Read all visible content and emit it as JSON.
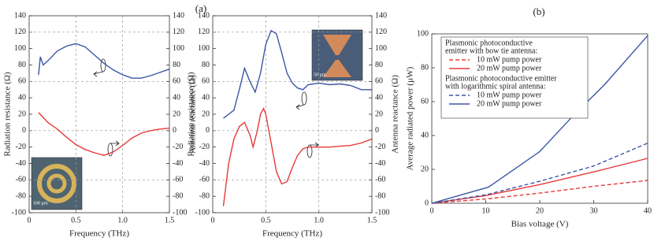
{
  "panel_labels": [
    "(a)",
    "(b)"
  ],
  "chart_data": [
    {
      "type": "line",
      "xlabel": "Frequency (THz)",
      "ylabel": "Radiation resistance (Ω)",
      "y2label": "Antenna reactance (Ω)",
      "xlim": [
        0,
        1.5
      ],
      "xticks": [
        0,
        0.5,
        {
          "value": 1,
          "label": "1.0"
        },
        1.5
      ],
      "ylim": [
        -100,
        140
      ],
      "yticks": [
        -100,
        -80,
        -60,
        -40,
        -20,
        0,
        20,
        40,
        60,
        80,
        100,
        120,
        140
      ],
      "y2lim": [
        -100,
        140
      ],
      "y2ticks": [
        -100,
        -80,
        -60,
        -40,
        -20,
        0,
        20,
        40,
        60,
        80,
        100,
        120,
        140
      ],
      "grid": true,
      "inset_label": "100 µm",
      "series": [
        {
          "color": "#3b56a6",
          "x": [
            0.1,
            0.12,
            0.15,
            0.2,
            0.3,
            0.4,
            0.5,
            0.6,
            0.7,
            0.8,
            0.9,
            1.0,
            1.1,
            1.2,
            1.3,
            1.4,
            1.5
          ],
          "values": [
            68,
            90,
            80,
            85,
            97,
            103,
            106,
            102,
            92,
            82,
            74,
            68,
            64,
            64,
            67,
            71,
            75
          ]
        },
        {
          "color": "#e63a3a",
          "axis": "y2",
          "x": [
            0.1,
            0.2,
            0.3,
            0.4,
            0.5,
            0.6,
            0.7,
            0.8,
            0.9,
            1.0,
            1.1,
            1.2,
            1.3,
            1.4,
            1.5
          ],
          "values": [
            22,
            10,
            2,
            -8,
            -17,
            -23,
            -27,
            -30,
            -26,
            -18,
            -9,
            -3,
            0,
            2,
            3
          ]
        }
      ]
    },
    {
      "type": "line",
      "xlabel": "Frequency (THz)",
      "ylabel": "Radiation resistance (Ω)",
      "y2label": "Antenna reactance (Ω)",
      "xlim": [
        0,
        1.5
      ],
      "xticks": [
        0,
        0.5,
        {
          "value": 1,
          "label": "1.0"
        },
        1.5
      ],
      "ylim": [
        -100,
        140
      ],
      "yticks": [
        -100,
        -80,
        -60,
        -40,
        -20,
        0,
        20,
        40,
        60,
        80,
        100,
        120,
        140
      ],
      "y2lim": [
        -100,
        140
      ],
      "y2ticks": [
        -100,
        -80,
        -60,
        -40,
        -20,
        0,
        20,
        40,
        60,
        80,
        100,
        120,
        140
      ],
      "grid": true,
      "inset_label": "50 µm",
      "series": [
        {
          "color": "#3b56a6",
          "x": [
            0.1,
            0.2,
            0.25,
            0.3,
            0.35,
            0.4,
            0.45,
            0.5,
            0.55,
            0.6,
            0.65,
            0.7,
            0.75,
            0.8,
            0.85,
            0.9,
            1.0,
            1.1,
            1.2,
            1.3,
            1.4,
            1.5
          ],
          "values": [
            15,
            25,
            50,
            76,
            60,
            47,
            70,
            105,
            122,
            118,
            95,
            70,
            58,
            52,
            50,
            56,
            58,
            56,
            57,
            55,
            50,
            50
          ]
        },
        {
          "color": "#e63a3a",
          "axis": "y2",
          "x": [
            0.1,
            0.15,
            0.2,
            0.25,
            0.3,
            0.35,
            0.38,
            0.42,
            0.45,
            0.48,
            0.5,
            0.55,
            0.6,
            0.65,
            0.7,
            0.75,
            0.8,
            0.85,
            0.9,
            1.0,
            1.1,
            1.2,
            1.3,
            1.4,
            1.5
          ],
          "values": [
            -92,
            -40,
            -10,
            5,
            10,
            -5,
            -20,
            0,
            20,
            27,
            20,
            -15,
            -50,
            -65,
            -62,
            -45,
            -30,
            -22,
            -20,
            -20,
            -20,
            -19,
            -18,
            -15,
            -10
          ]
        }
      ]
    },
    {
      "type": "line",
      "xlabel": "Bias voltage (V)",
      "ylabel": "Average radiated power (µW)",
      "xlim": [
        0,
        40
      ],
      "xticks": [
        0,
        10,
        20,
        30,
        40
      ],
      "ylim": [
        0,
        100
      ],
      "yticks": [
        0,
        20,
        40,
        60,
        80,
        100
      ],
      "grid": false,
      "legend_headings": [
        [
          "Plasmonic photoconductive",
          "emitter with bow tie antenna:"
        ],
        [
          "Plasmonic photoconductive emitter",
          "with logarithmic spiral antenna:"
        ]
      ],
      "series": [
        {
          "name": "10 mW pump power",
          "color": "#e63a3a",
          "style": "dashed",
          "x": [
            0,
            10,
            20,
            30,
            40
          ],
          "values": [
            0,
            2.5,
            6,
            10,
            13.5
          ]
        },
        {
          "name": "20 mW pump power",
          "color": "#e63a3a",
          "style": "solid",
          "x": [
            0,
            10,
            20,
            30,
            40
          ],
          "values": [
            0,
            4.5,
            11,
            18.5,
            26.5
          ]
        },
        {
          "name": "10 mW pump power",
          "color": "#3b56a6",
          "style": "dashed",
          "x": [
            0,
            10,
            20,
            30,
            40
          ],
          "values": [
            0,
            5,
            13,
            22,
            35.5
          ]
        },
        {
          "name": "20 mW pump power",
          "color": "#3b56a6",
          "style": "solid",
          "x": [
            0,
            10.5,
            20,
            26,
            32,
            40
          ],
          "values": [
            0,
            9.5,
            30.5,
            51,
            70,
            99
          ]
        }
      ]
    }
  ]
}
